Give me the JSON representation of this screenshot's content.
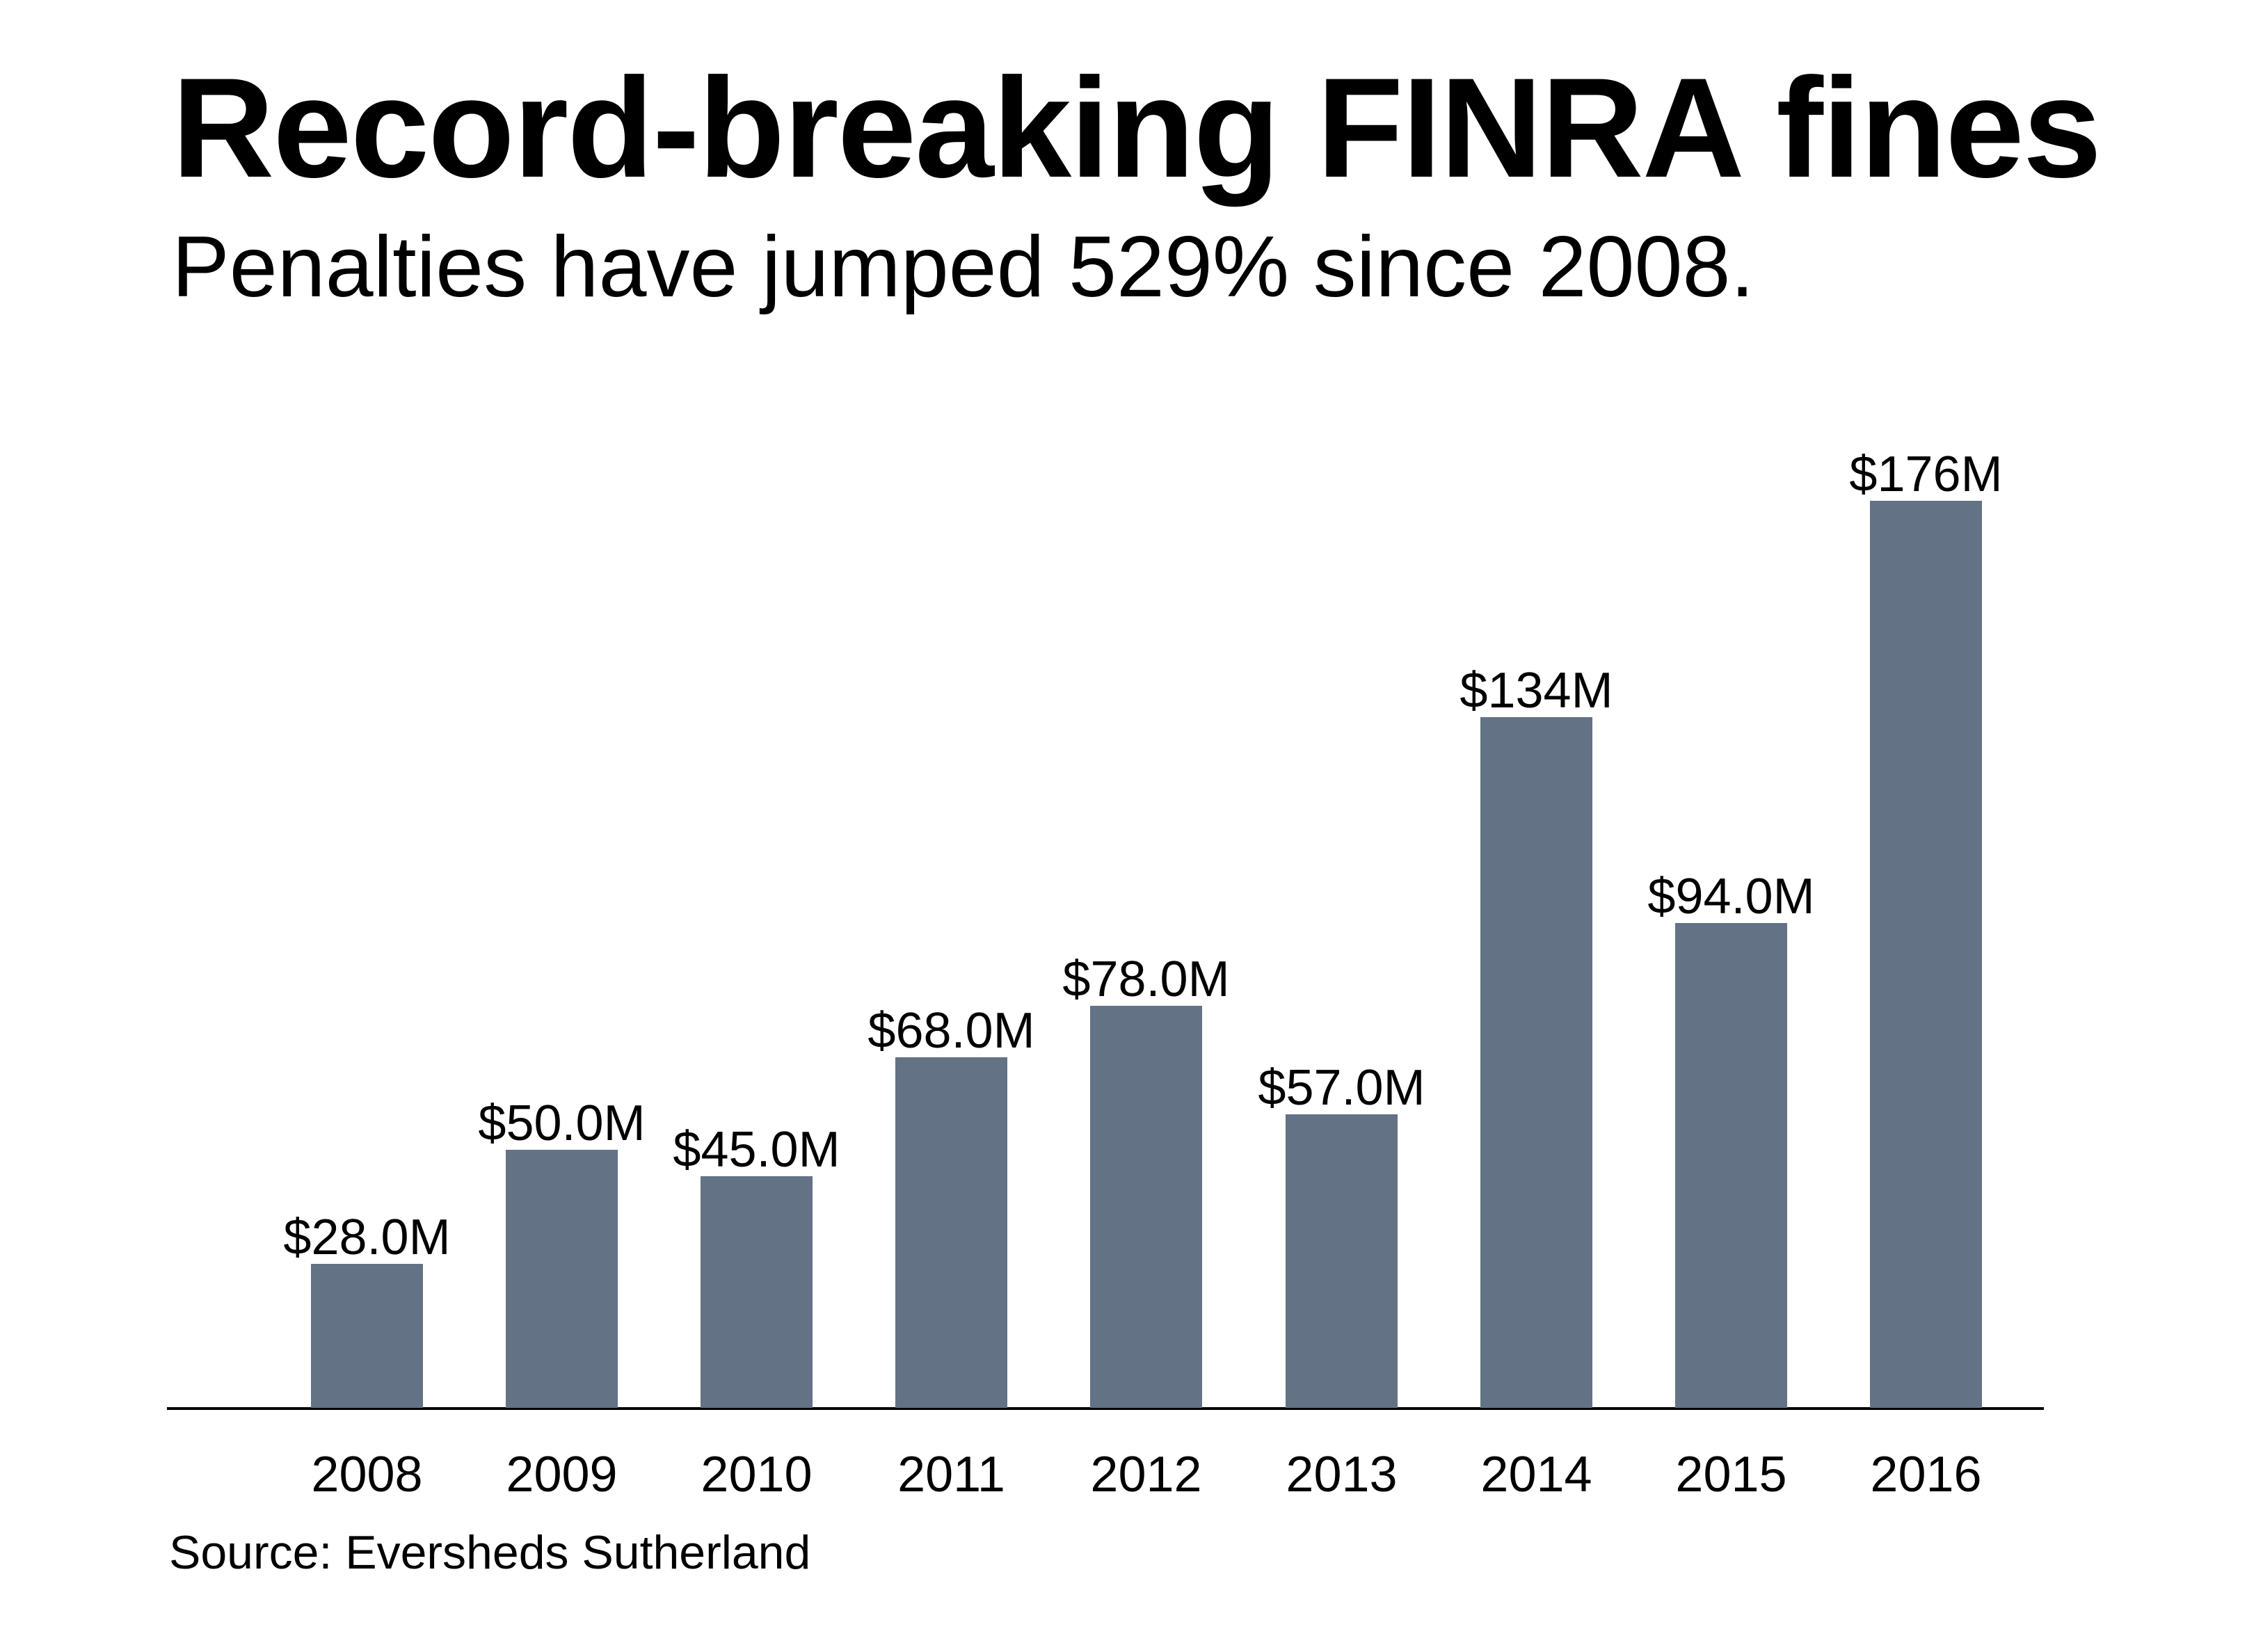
{
  "header": {
    "title": "Record-breaking FINRA fines",
    "subtitle": "Penalties have jumped 529% since 2008."
  },
  "footer": {
    "source": "Source: Eversheds Sutherland"
  },
  "colors": {
    "bar": "#637284",
    "axis": "#000000",
    "text": "#000000",
    "background": "#ffffff"
  },
  "chart_data": {
    "type": "bar",
    "title": "Record-breaking FINRA fines",
    "subtitle": "Penalties have jumped 529% since 2008.",
    "xlabel": "",
    "ylabel": "",
    "categories": [
      "2008",
      "2009",
      "2010",
      "2011",
      "2012",
      "2013",
      "2014",
      "2015",
      "2016"
    ],
    "values": [
      28,
      50,
      45,
      68,
      78,
      57,
      134,
      94,
      176
    ],
    "data_labels": [
      "$28.0M",
      "$50.0M",
      "$45.0M",
      "$68.0M",
      "$78.0M",
      "$57.0M",
      "$134M",
      "$94.0M",
      "$176M"
    ],
    "units": "USD millions",
    "ylim": [
      0,
      176
    ],
    "grid": false,
    "legend": null,
    "source": "Source: Eversheds Sutherland"
  }
}
